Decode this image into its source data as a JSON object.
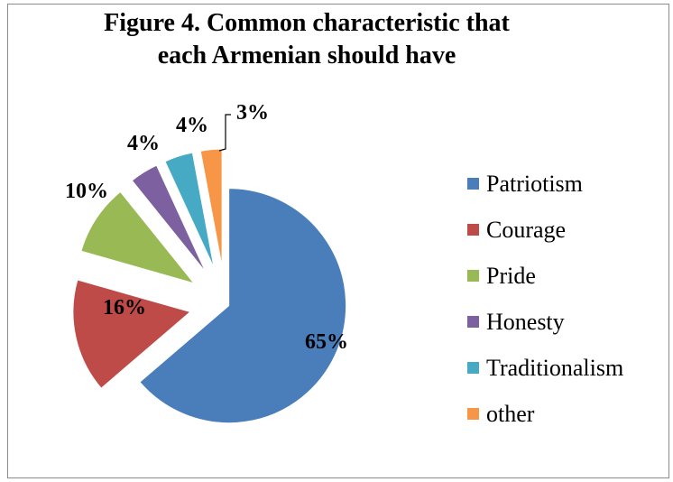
{
  "chart_data": {
    "type": "pie",
    "title_lines": [
      "Figure 4. Common characteristic that",
      "each Armenian should have"
    ],
    "categories": [
      "Patriotism",
      "Courage",
      "Pride",
      "Honesty",
      "Traditionalism",
      "other"
    ],
    "values": [
      65,
      16,
      10,
      4,
      4,
      3
    ],
    "data_labels": [
      "65%",
      "16%",
      "10%",
      "4%",
      "4%",
      "3%"
    ],
    "colors": [
      "#4a7ebb",
      "#be4b48",
      "#98b954",
      "#7d60a0",
      "#46aac5",
      "#f79646"
    ],
    "exploded": true,
    "legend": "right"
  }
}
